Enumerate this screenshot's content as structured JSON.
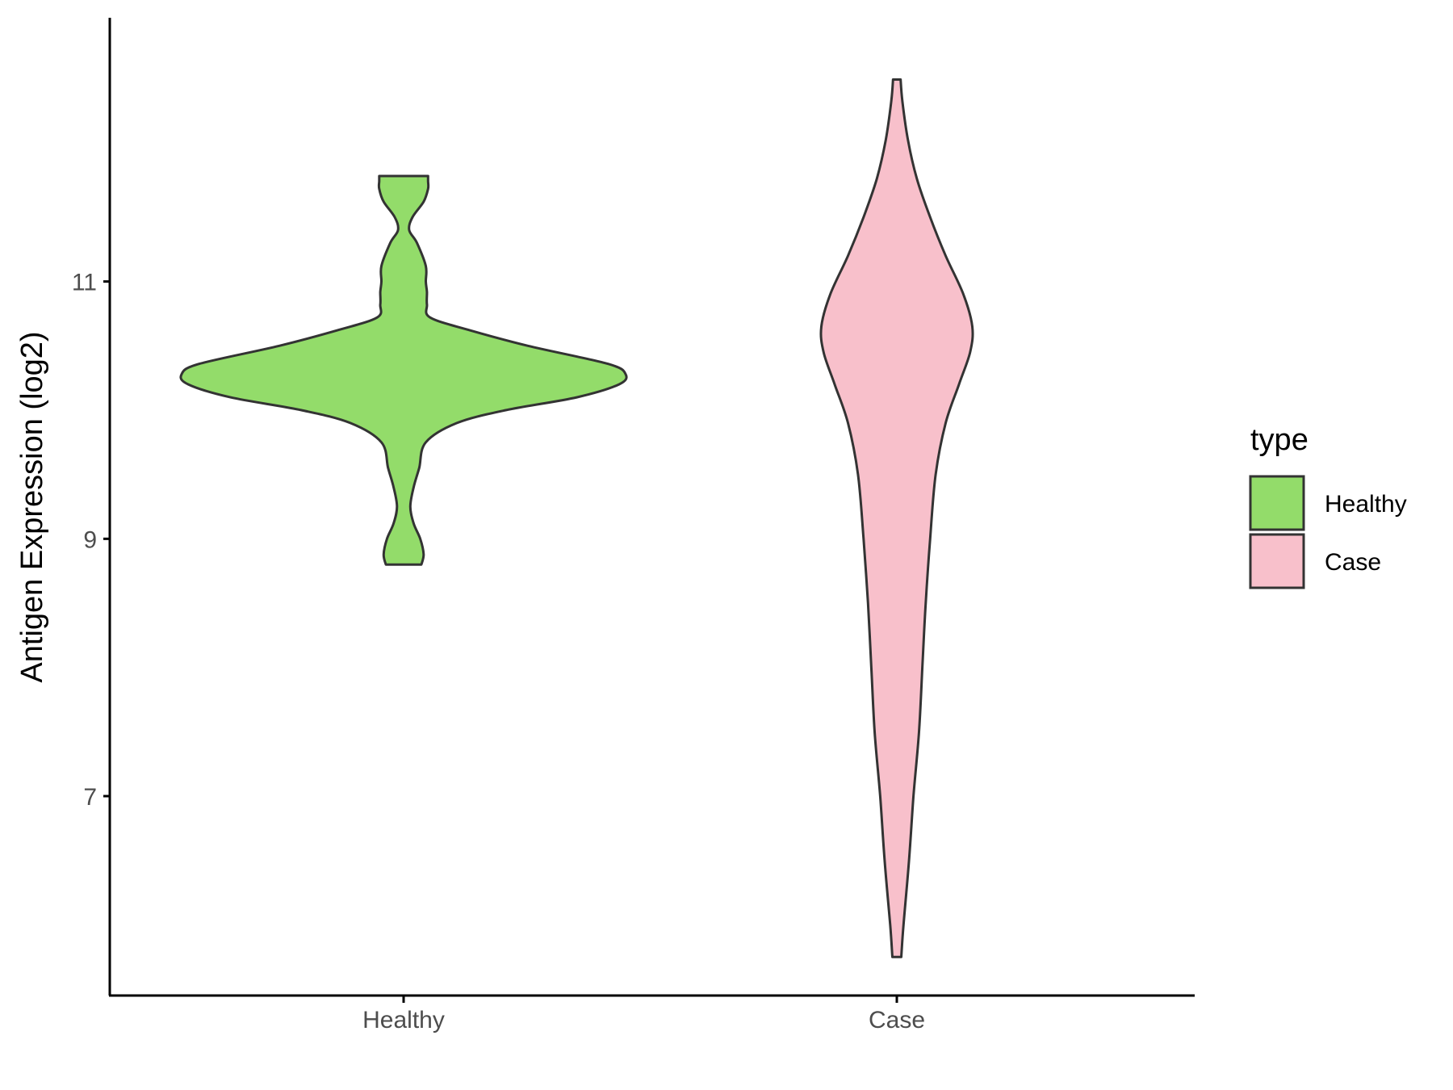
{
  "chart_data": {
    "type": "violin",
    "ylabel": "Antigen Expression (log2)",
    "xlabel": "",
    "title": "",
    "categories": [
      "Healthy",
      "Case"
    ],
    "ylim": [
      5.45,
      13.05
    ],
    "yticks": [
      7,
      9,
      11
    ],
    "grid": false,
    "legend": {
      "title": "type",
      "placement": "right",
      "entries": [
        {
          "label": "Healthy",
          "color": "#93dc6a"
        },
        {
          "label": "Case",
          "color": "#f8c0cb"
        }
      ]
    },
    "series": [
      {
        "name": "Healthy",
        "color": "#93dc6a",
        "min": 8.8,
        "max": 11.82,
        "density_profile": [
          [
            8.8,
            0.08
          ],
          [
            8.88,
            0.09
          ],
          [
            9.0,
            0.075
          ],
          [
            9.12,
            0.045
          ],
          [
            9.25,
            0.03
          ],
          [
            9.4,
            0.045
          ],
          [
            9.55,
            0.07
          ],
          [
            9.75,
            0.1
          ],
          [
            9.9,
            0.24
          ],
          [
            10.0,
            0.46
          ],
          [
            10.1,
            0.78
          ],
          [
            10.2,
            0.97
          ],
          [
            10.28,
            1.0
          ],
          [
            10.36,
            0.92
          ],
          [
            10.5,
            0.56
          ],
          [
            10.62,
            0.3
          ],
          [
            10.72,
            0.12
          ],
          [
            10.82,
            0.105
          ],
          [
            10.92,
            0.105
          ],
          [
            11.0,
            0.1
          ],
          [
            11.12,
            0.1
          ],
          [
            11.3,
            0.06
          ],
          [
            11.4,
            0.025
          ],
          [
            11.5,
            0.04
          ],
          [
            11.62,
            0.09
          ],
          [
            11.72,
            0.11
          ],
          [
            11.78,
            0.11
          ],
          [
            11.82,
            0.11
          ]
        ]
      },
      {
        "name": "Case",
        "color": "#f8c0cb",
        "min": 5.75,
        "max": 12.57,
        "density_profile": [
          [
            5.75,
            0.02
          ],
          [
            6.0,
            0.03
          ],
          [
            6.5,
            0.055
          ],
          [
            7.0,
            0.075
          ],
          [
            7.5,
            0.1
          ],
          [
            8.0,
            0.115
          ],
          [
            8.5,
            0.13
          ],
          [
            9.0,
            0.15
          ],
          [
            9.5,
            0.175
          ],
          [
            9.9,
            0.22
          ],
          [
            10.2,
            0.28
          ],
          [
            10.45,
            0.33
          ],
          [
            10.65,
            0.34
          ],
          [
            10.9,
            0.3
          ],
          [
            11.2,
            0.22
          ],
          [
            11.5,
            0.15
          ],
          [
            11.8,
            0.09
          ],
          [
            12.1,
            0.05
          ],
          [
            12.4,
            0.025
          ],
          [
            12.57,
            0.017
          ]
        ]
      }
    ]
  }
}
